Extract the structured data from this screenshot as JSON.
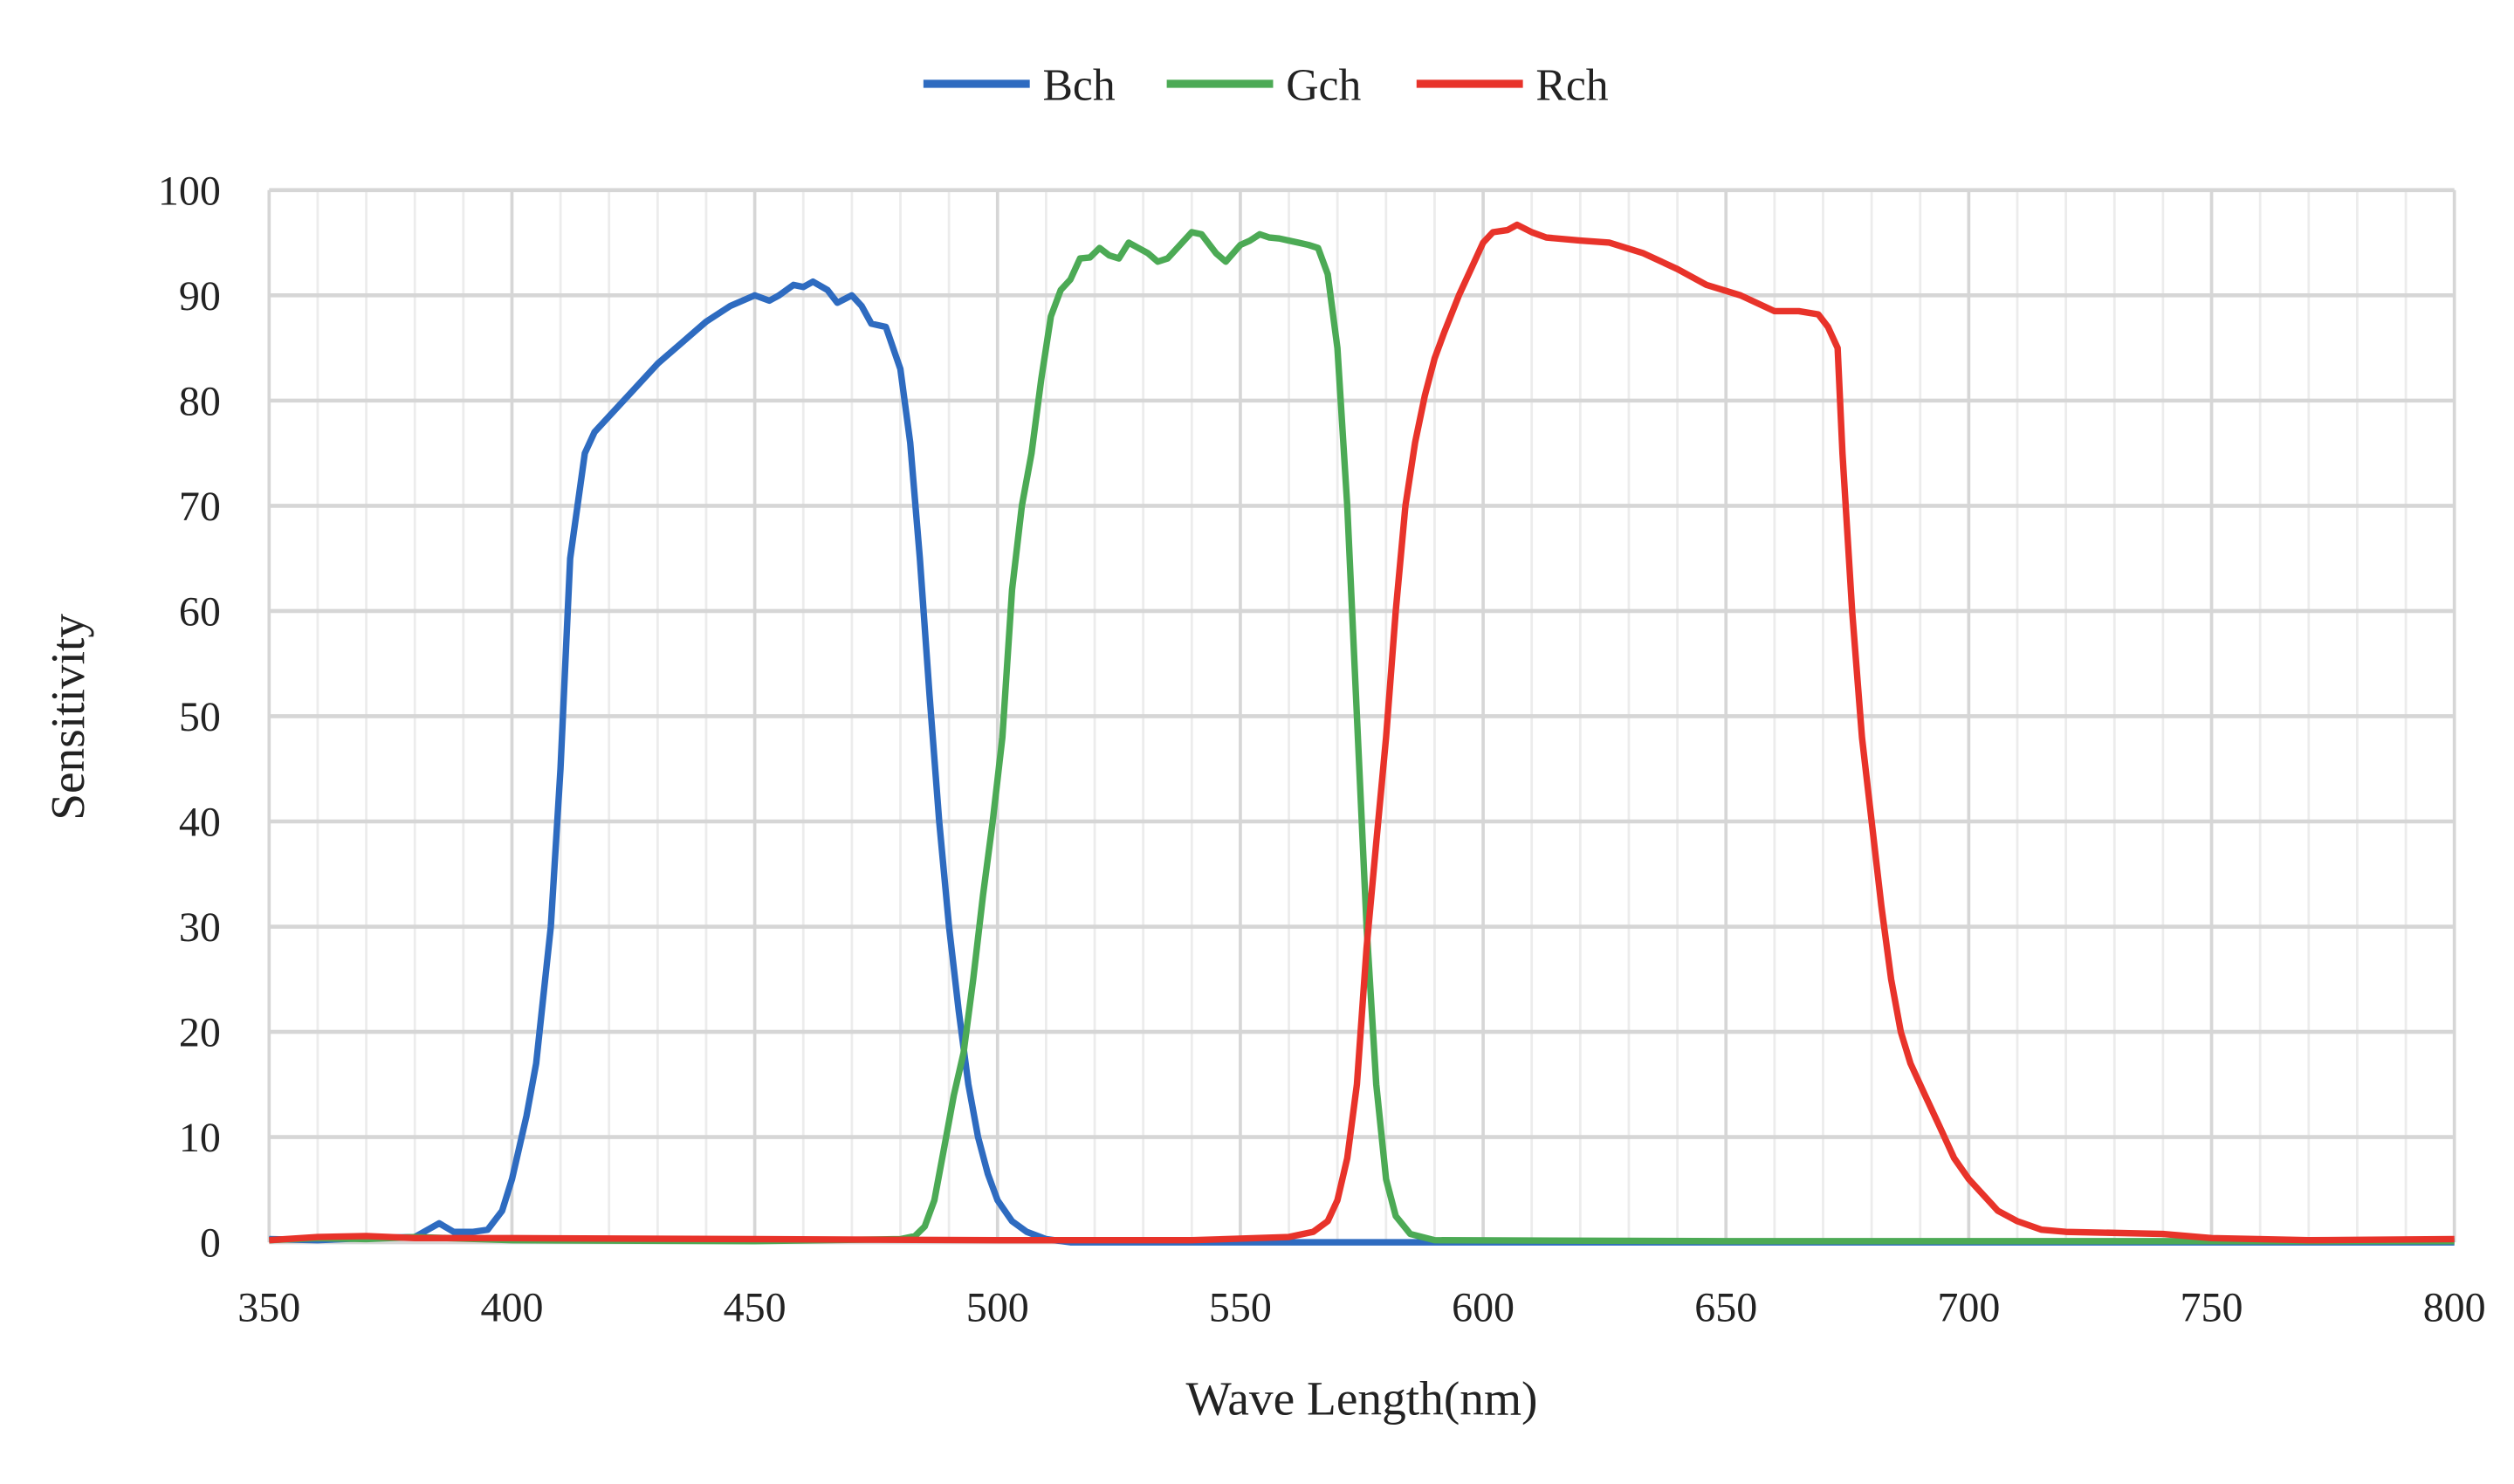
{
  "chart_data": {
    "type": "line",
    "title": "",
    "xlabel": "Wave Length(nm)",
    "ylabel": "Sensitivity",
    "xlim": [
      350,
      800
    ],
    "ylim": [
      0,
      100
    ],
    "xticks": [
      350,
      400,
      450,
      500,
      550,
      600,
      650,
      700,
      750,
      800
    ],
    "yticks": [
      0,
      10,
      20,
      30,
      40,
      50,
      60,
      70,
      80,
      90,
      100
    ],
    "grid": true,
    "legend_placement": "top-center",
    "series": [
      {
        "name": "Bch",
        "color": "#2e6bc0",
        "points": [
          [
            350,
            0.3
          ],
          [
            360,
            0.2
          ],
          [
            370,
            0.4
          ],
          [
            380,
            0.5
          ],
          [
            385,
            1.8
          ],
          [
            388,
            1.0
          ],
          [
            392,
            1.0
          ],
          [
            395,
            1.2
          ],
          [
            398,
            3
          ],
          [
            400,
            6
          ],
          [
            403,
            12
          ],
          [
            405,
            17
          ],
          [
            408,
            30
          ],
          [
            410,
            45
          ],
          [
            412,
            65
          ],
          [
            415,
            75
          ],
          [
            417,
            77
          ],
          [
            420,
            78.5
          ],
          [
            425,
            81
          ],
          [
            430,
            83.5
          ],
          [
            435,
            85.5
          ],
          [
            440,
            87.5
          ],
          [
            445,
            89
          ],
          [
            450,
            90
          ],
          [
            453,
            89.5
          ],
          [
            455,
            90
          ],
          [
            458,
            91
          ],
          [
            460,
            90.8
          ],
          [
            462,
            91.3
          ],
          [
            465,
            90.5
          ],
          [
            467,
            89.3
          ],
          [
            470,
            90
          ],
          [
            472,
            89
          ],
          [
            474,
            87.3
          ],
          [
            477,
            87
          ],
          [
            480,
            83
          ],
          [
            482,
            76
          ],
          [
            484,
            65
          ],
          [
            486,
            52
          ],
          [
            488,
            40
          ],
          [
            490,
            30
          ],
          [
            492,
            22
          ],
          [
            494,
            15
          ],
          [
            496,
            10
          ],
          [
            498,
            6.5
          ],
          [
            500,
            4
          ],
          [
            503,
            2
          ],
          [
            506,
            1
          ],
          [
            510,
            0.3
          ],
          [
            515,
            0
          ],
          [
            800,
            0
          ]
        ]
      },
      {
        "name": "Gch",
        "color": "#4caa55",
        "points": [
          [
            350,
            0.2
          ],
          [
            360,
            0.4
          ],
          [
            370,
            0.3
          ],
          [
            380,
            0.5
          ],
          [
            400,
            0.2
          ],
          [
            450,
            0.1
          ],
          [
            480,
            0.3
          ],
          [
            483,
            0.6
          ],
          [
            485,
            1.5
          ],
          [
            487,
            4
          ],
          [
            489,
            9
          ],
          [
            491,
            14
          ],
          [
            493,
            18
          ],
          [
            495,
            25
          ],
          [
            497,
            33
          ],
          [
            499,
            40
          ],
          [
            501,
            48
          ],
          [
            503,
            62
          ],
          [
            505,
            70
          ],
          [
            507,
            75
          ],
          [
            509,
            82
          ],
          [
            511,
            88
          ],
          [
            513,
            90.5
          ],
          [
            515,
            91.5
          ],
          [
            517,
            93.5
          ],
          [
            519,
            93.6
          ],
          [
            521,
            94.5
          ],
          [
            523,
            93.8
          ],
          [
            525,
            93.5
          ],
          [
            527,
            95
          ],
          [
            529,
            94.5
          ],
          [
            531,
            94
          ],
          [
            533,
            93.2
          ],
          [
            535,
            93.5
          ],
          [
            537,
            94.5
          ],
          [
            540,
            96
          ],
          [
            542,
            95.8
          ],
          [
            545,
            94
          ],
          [
            547,
            93.2
          ],
          [
            550,
            94.8
          ],
          [
            552,
            95.2
          ],
          [
            554,
            95.8
          ],
          [
            556,
            95.5
          ],
          [
            558,
            95.4
          ],
          [
            560,
            95.2
          ],
          [
            562,
            95
          ],
          [
            564,
            94.8
          ],
          [
            566,
            94.5
          ],
          [
            568,
            92
          ],
          [
            570,
            85
          ],
          [
            572,
            70
          ],
          [
            574,
            50
          ],
          [
            576,
            30
          ],
          [
            578,
            15
          ],
          [
            580,
            6
          ],
          [
            582,
            2.5
          ],
          [
            585,
            0.8
          ],
          [
            590,
            0.2
          ],
          [
            650,
            0.1
          ],
          [
            700,
            0.1
          ],
          [
            800,
            0.1
          ]
        ]
      },
      {
        "name": "Rch",
        "color": "#e8332a",
        "points": [
          [
            350,
            0.2
          ],
          [
            360,
            0.5
          ],
          [
            370,
            0.6
          ],
          [
            380,
            0.4
          ],
          [
            400,
            0.4
          ],
          [
            450,
            0.3
          ],
          [
            500,
            0.2
          ],
          [
            540,
            0.2
          ],
          [
            560,
            0.5
          ],
          [
            565,
            1
          ],
          [
            568,
            2
          ],
          [
            570,
            4
          ],
          [
            572,
            8
          ],
          [
            574,
            15
          ],
          [
            576,
            28
          ],
          [
            578,
            38
          ],
          [
            580,
            48
          ],
          [
            582,
            60
          ],
          [
            584,
            70
          ],
          [
            586,
            76
          ],
          [
            588,
            80.5
          ],
          [
            590,
            84
          ],
          [
            592,
            86.5
          ],
          [
            595,
            90
          ],
          [
            598,
            93
          ],
          [
            600,
            95
          ],
          [
            602,
            96
          ],
          [
            605,
            96.2
          ],
          [
            607,
            96.7
          ],
          [
            610,
            96
          ],
          [
            613,
            95.5
          ],
          [
            620,
            95.2
          ],
          [
            626,
            95
          ],
          [
            633,
            94
          ],
          [
            640,
            92.5
          ],
          [
            646,
            91
          ],
          [
            653,
            90
          ],
          [
            660,
            88.5
          ],
          [
            665,
            88.5
          ],
          [
            669,
            88.2
          ],
          [
            671,
            87
          ],
          [
            673,
            85
          ],
          [
            674,
            75
          ],
          [
            676,
            60
          ],
          [
            678,
            48
          ],
          [
            680,
            40
          ],
          [
            682,
            32
          ],
          [
            684,
            25
          ],
          [
            686,
            20
          ],
          [
            688,
            17
          ],
          [
            691,
            14
          ],
          [
            694,
            11
          ],
          [
            697,
            8
          ],
          [
            700,
            6
          ],
          [
            703,
            4.5
          ],
          [
            706,
            3
          ],
          [
            710,
            2
          ],
          [
            715,
            1.2
          ],
          [
            720,
            1
          ],
          [
            740,
            0.8
          ],
          [
            750,
            0.4
          ],
          [
            770,
            0.2
          ],
          [
            800,
            0.3
          ]
        ]
      }
    ]
  }
}
